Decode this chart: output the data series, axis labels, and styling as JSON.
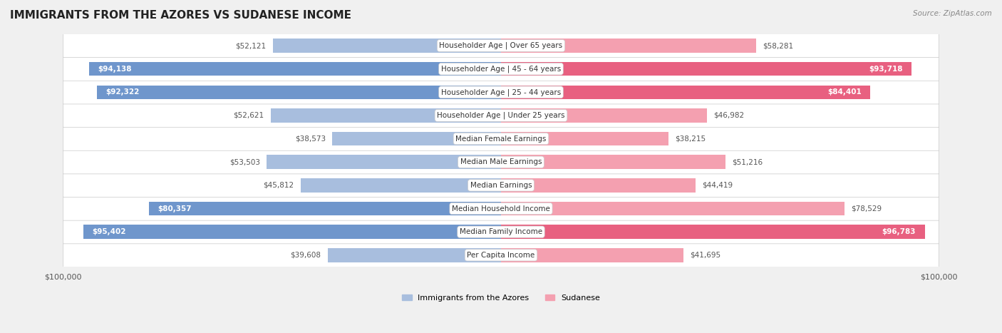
{
  "title": "IMMIGRANTS FROM THE AZORES VS SUDANESE INCOME",
  "source": "Source: ZipAtlas.com",
  "categories": [
    "Per Capita Income",
    "Median Family Income",
    "Median Household Income",
    "Median Earnings",
    "Median Male Earnings",
    "Median Female Earnings",
    "Householder Age | Under 25 years",
    "Householder Age | 25 - 44 years",
    "Householder Age | 45 - 64 years",
    "Householder Age | Over 65 years"
  ],
  "azores_values": [
    39608,
    95402,
    80357,
    45812,
    53503,
    38573,
    52621,
    92322,
    94138,
    52121
  ],
  "sudanese_values": [
    41695,
    96783,
    78529,
    44419,
    51216,
    38215,
    46982,
    84401,
    93718,
    58281
  ],
  "azores_color": "#a8bede",
  "sudanese_color": "#f4a0b0",
  "azores_dark_color": "#6f96cc",
  "sudanese_dark_color": "#e86080",
  "background_color": "#f0f0f0",
  "row_bg_color": "#f8f8f8",
  "max_value": 100000,
  "x_min": -100000,
  "x_max": 100000,
  "bar_height": 0.6,
  "azores_label": "Immigrants from the Azores",
  "sudanese_label": "Sudanese"
}
